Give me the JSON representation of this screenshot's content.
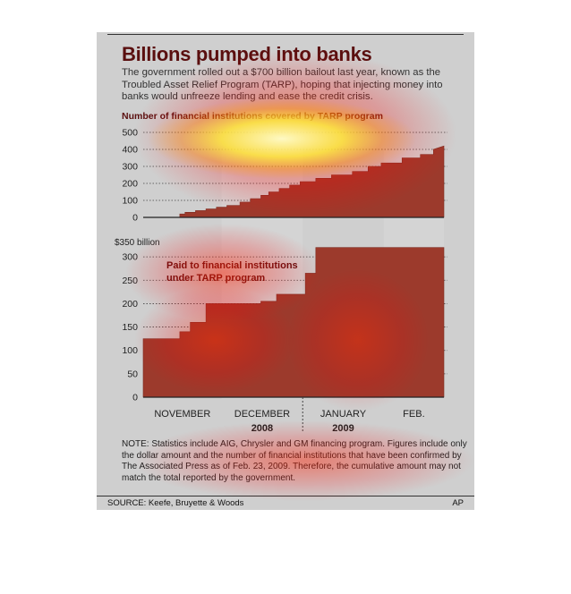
{
  "graphic": {
    "title": "Billions pumped into banks",
    "intro": "The government rolled out a $700 billion bailout last year, known as the Troubled Asset Relief Program (TARP), hoping that injecting money into banks would unfreeze lending and ease the credit crisis.",
    "note": "NOTE: Statistics include AIG, Chrysler and GM financing program. Figures include only the dollar amount and the number of financial institutions that have been confirmed by The Associated Press as of Feb. 23, 2009. Therefore, the cumulative amount may not match the total reported by the government.",
    "source": "SOURCE: Keefe, Bruyette & Woods",
    "credit": "AP"
  },
  "chart_data": [
    {
      "type": "area",
      "title": "Number of financial institutions covered by TARP program",
      "ylim": [
        0,
        500
      ],
      "y_ticks": [
        "0",
        "100",
        "200",
        "300",
        "400",
        "500"
      ],
      "grid": true,
      "x_label": [
        "NOVEMBER",
        "DECEMBER",
        "JANUARY",
        "FEB."
      ],
      "x_year_labels": [
        "2008",
        "2009"
      ],
      "x_range": [
        0,
        115
      ],
      "series": [
        {
          "x": [
            0,
            14,
            14,
            16,
            16,
            20,
            20,
            24,
            24,
            28,
            28,
            32,
            32,
            37,
            37,
            41,
            41,
            45,
            45,
            48,
            48,
            52,
            52,
            56,
            56,
            60,
            60,
            66,
            66,
            72,
            72,
            80,
            80,
            86,
            86,
            91,
            91,
            99,
            99,
            106,
            106,
            111,
            111,
            115
          ],
          "y": [
            0,
            0,
            20,
            20,
            30,
            30,
            40,
            40,
            50,
            50,
            60,
            60,
            70,
            70,
            90,
            90,
            110,
            110,
            130,
            130,
            150,
            150,
            170,
            170,
            190,
            190,
            210,
            210,
            230,
            230,
            250,
            250,
            270,
            270,
            300,
            300,
            320,
            320,
            350,
            350,
            370,
            370,
            400,
            420
          ]
        }
      ]
    },
    {
      "type": "area",
      "title": "Paid to financial institutions under TARP program",
      "y_unit_label": "$350 billion",
      "ylim": [
        0,
        350
      ],
      "y_ticks": [
        "0",
        "50",
        "100",
        "150",
        "200",
        "250",
        "300"
      ],
      "grid": true,
      "x_range": [
        0,
        115
      ],
      "series": [
        {
          "x": [
            0,
            14,
            14,
            18,
            18,
            24,
            24,
            45,
            45,
            51,
            51,
            62,
            62,
            66,
            66,
            115
          ],
          "y": [
            125,
            125,
            140,
            140,
            160,
            160,
            200,
            200,
            205,
            205,
            220,
            220,
            265,
            265,
            320,
            320
          ]
        }
      ]
    }
  ]
}
